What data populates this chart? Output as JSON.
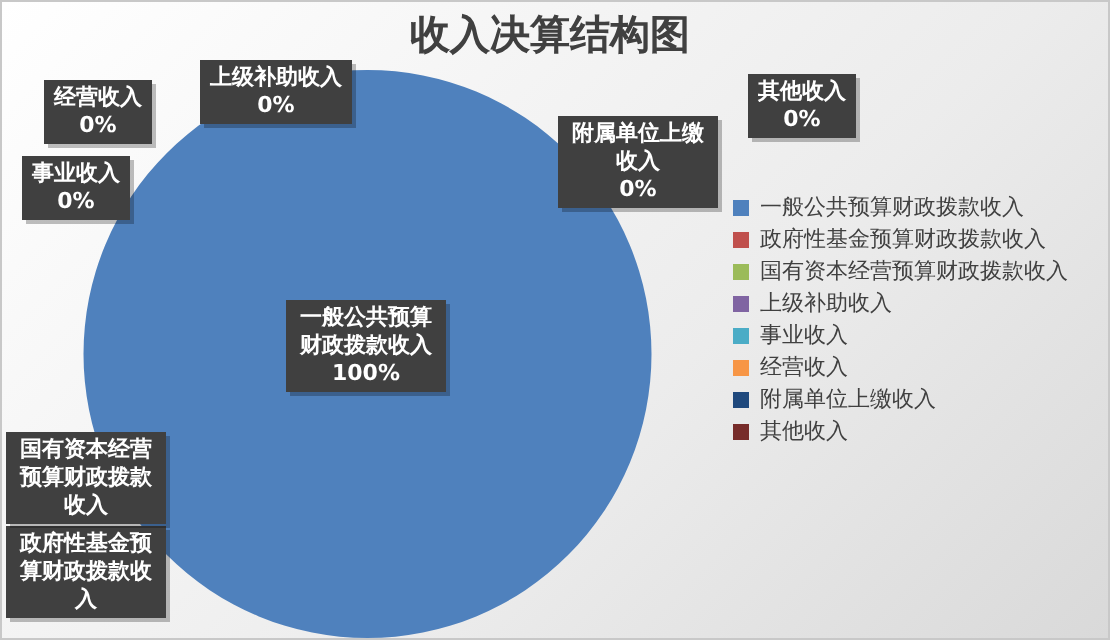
{
  "chart_data": {
    "type": "pie",
    "title": "收入决算结构图",
    "categories": [
      "一般公共预算财政拨款收入",
      "政府性基金预算财政拨款收入",
      "国有资本经营预算财政拨款收入",
      "上级补助收入",
      "事业收入",
      "经营收入",
      "附属单位上缴收入",
      "其他收入"
    ],
    "values": [
      100,
      0,
      0,
      0,
      0,
      0,
      0,
      0
    ],
    "colors": [
      "#4f81bd",
      "#c0504d",
      "#9bbb59",
      "#8064a2",
      "#4bacc6",
      "#f79646",
      "#1f497d",
      "#772c2a"
    ],
    "value_labels": [
      "100%",
      null,
      null,
      "0%",
      "0%",
      "0%",
      "0%",
      "0%"
    ],
    "legend": "right"
  }
}
